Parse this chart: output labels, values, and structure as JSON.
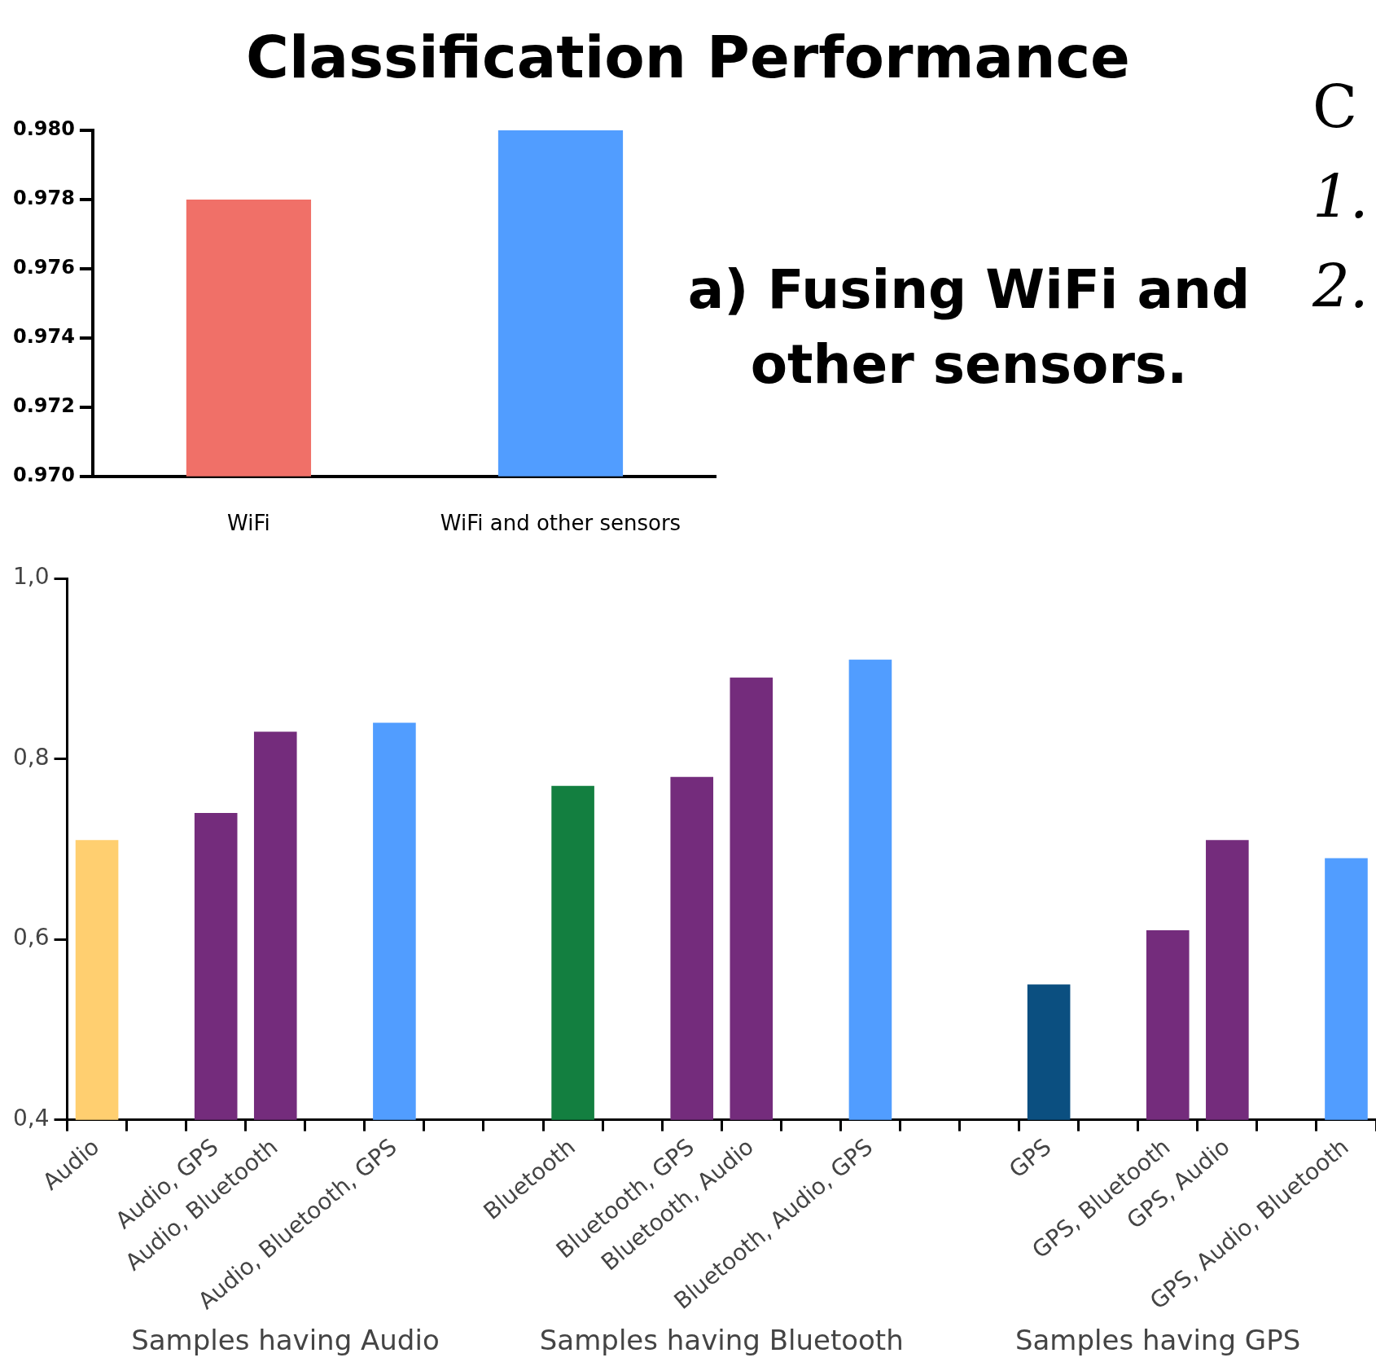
{
  "chart_data": [
    {
      "type": "bar",
      "title": "Classification Performance",
      "categories": [
        "WiFi",
        "WiFi and other sensors"
      ],
      "values": [
        0.978,
        0.98
      ],
      "colors": [
        "#f07068",
        "#519dff"
      ],
      "ylim": [
        0.97,
        0.98
      ],
      "yticks": [
        {
          "value": 0.97,
          "label": "0.970"
        },
        {
          "value": 0.972,
          "label": "0.972"
        },
        {
          "value": 0.974,
          "label": "0.974"
        },
        {
          "value": 0.976,
          "label": "0.976"
        },
        {
          "value": 0.978,
          "label": "0.978"
        },
        {
          "value": 0.98,
          "label": "0.980"
        }
      ],
      "annotations": [
        "a) Fusing WiFi and other sensors.",
        "C",
        "1.",
        "2."
      ]
    },
    {
      "type": "bar",
      "categories": [
        "Audio",
        null,
        "Audio, GPS",
        "Audio, Bluetooth",
        null,
        "Audio, Bluetooth, GPS",
        null,
        null,
        "Bluetooth",
        null,
        "Bluetooth, GPS",
        "Bluetooth, Audio",
        null,
        "Bluetooth, Audio, GPS",
        null,
        null,
        "GPS",
        null,
        "GPS, Bluetooth",
        "GPS, Audio",
        null,
        "GPS, Audio, Bluetooth"
      ],
      "values": [
        0.71,
        null,
        0.74,
        0.83,
        null,
        0.84,
        null,
        null,
        0.77,
        null,
        0.78,
        0.89,
        null,
        0.91,
        null,
        null,
        0.55,
        null,
        0.61,
        0.71,
        null,
        0.69
      ],
      "colors": [
        "#ffcf70",
        null,
        "#742c7c",
        "#742c7c",
        null,
        "#519dff",
        null,
        null,
        "#137f40",
        null,
        "#742c7c",
        "#742c7c",
        null,
        "#519dff",
        null,
        null,
        "#0b4f80",
        null,
        "#742c7c",
        "#742c7c",
        null,
        "#519dff"
      ],
      "ylim": [
        0.4,
        1.0
      ],
      "yticks": [
        {
          "value": 0.4,
          "label": "0,4"
        },
        {
          "value": 0.6,
          "label": "0,6"
        },
        {
          "value": 0.8,
          "label": "0,8"
        },
        {
          "value": 1.0,
          "label": "1,0"
        }
      ],
      "annotations": [
        "Samples having Audio",
        "Samples having Bluetooth",
        "Samples having GPS"
      ]
    }
  ]
}
